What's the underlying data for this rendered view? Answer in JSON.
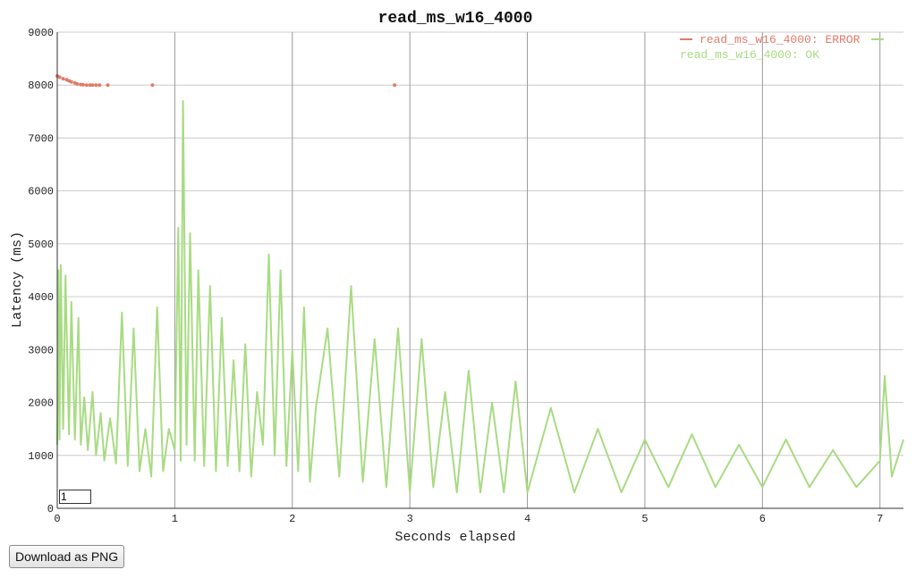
{
  "ui": {
    "smoothing_value": "1",
    "download_label": "Download as PNG"
  },
  "colors": {
    "error": "#e07b66",
    "ok": "#a8db82",
    "grid": "#cccccc"
  },
  "chart_data": {
    "type": "line",
    "title": "read_ms_w16_4000",
    "xlabel": "Seconds elapsed",
    "ylabel": "Latency (ms)",
    "xlim": [
      0,
      7.2
    ],
    "ylim": [
      0,
      9000
    ],
    "x_ticks": [
      0,
      1,
      2,
      3,
      4,
      5,
      6,
      7
    ],
    "y_ticks": [
      0,
      1000,
      2000,
      3000,
      4000,
      5000,
      6000,
      7000,
      8000,
      9000
    ],
    "grid": true,
    "legend_position": "top-right",
    "series": [
      {
        "name": "read_ms_w16_4000: ERROR",
        "mode": "markers",
        "x": [
          0.0,
          0.02,
          0.05,
          0.08,
          0.1,
          0.12,
          0.15,
          0.17,
          0.2,
          0.22,
          0.25,
          0.28,
          0.3,
          0.33,
          0.36,
          0.43,
          0.81,
          2.87
        ],
        "y": [
          8170,
          8150,
          8120,
          8100,
          8080,
          8060,
          8040,
          8020,
          8010,
          8005,
          8000,
          8000,
          8000,
          8000,
          8000,
          8000,
          8000,
          8000
        ]
      },
      {
        "name": "read_ms_w16_4000: OK",
        "mode": "lines",
        "x": [
          0.0,
          0.01,
          0.02,
          0.03,
          0.05,
          0.07,
          0.1,
          0.12,
          0.15,
          0.18,
          0.2,
          0.23,
          0.26,
          0.3,
          0.33,
          0.37,
          0.4,
          0.45,
          0.5,
          0.55,
          0.6,
          0.65,
          0.7,
          0.75,
          0.8,
          0.85,
          0.9,
          0.95,
          1.0,
          1.03,
          1.05,
          1.07,
          1.1,
          1.13,
          1.17,
          1.2,
          1.25,
          1.3,
          1.35,
          1.4,
          1.45,
          1.5,
          1.55,
          1.6,
          1.65,
          1.7,
          1.75,
          1.8,
          1.85,
          1.9,
          1.95,
          2.0,
          2.05,
          2.1,
          2.15,
          2.2,
          2.3,
          2.4,
          2.5,
          2.6,
          2.7,
          2.8,
          2.9,
          3.0,
          3.1,
          3.2,
          3.3,
          3.4,
          3.5,
          3.6,
          3.7,
          3.8,
          3.9,
          4.0,
          4.2,
          4.4,
          4.6,
          4.8,
          5.0,
          5.2,
          5.4,
          5.6,
          5.8,
          6.0,
          6.2,
          6.4,
          6.6,
          6.8,
          7.0,
          7.04,
          7.1,
          7.2
        ],
        "y": [
          1200,
          4500,
          1300,
          4600,
          1500,
          4400,
          1400,
          3900,
          1300,
          3600,
          1200,
          2100,
          1100,
          2200,
          1000,
          1800,
          900,
          1700,
          850,
          3700,
          800,
          3400,
          700,
          1500,
          600,
          3800,
          700,
          1500,
          1100,
          5300,
          900,
          7700,
          1200,
          5200,
          900,
          4500,
          800,
          4200,
          700,
          3600,
          800,
          2800,
          700,
          3100,
          600,
          2200,
          1200,
          4800,
          1000,
          4500,
          800,
          3000,
          700,
          3800,
          500,
          1900,
          3400,
          600,
          4200,
          500,
          3200,
          400,
          3400,
          300,
          3200,
          400,
          2200,
          300,
          2600,
          300,
          2000,
          300,
          2400,
          300,
          1900,
          300,
          1500,
          300,
          1300,
          400,
          1400,
          400,
          1200,
          400,
          1300,
          400,
          1100,
          400,
          900,
          2500,
          600,
          1300
        ]
      }
    ]
  }
}
